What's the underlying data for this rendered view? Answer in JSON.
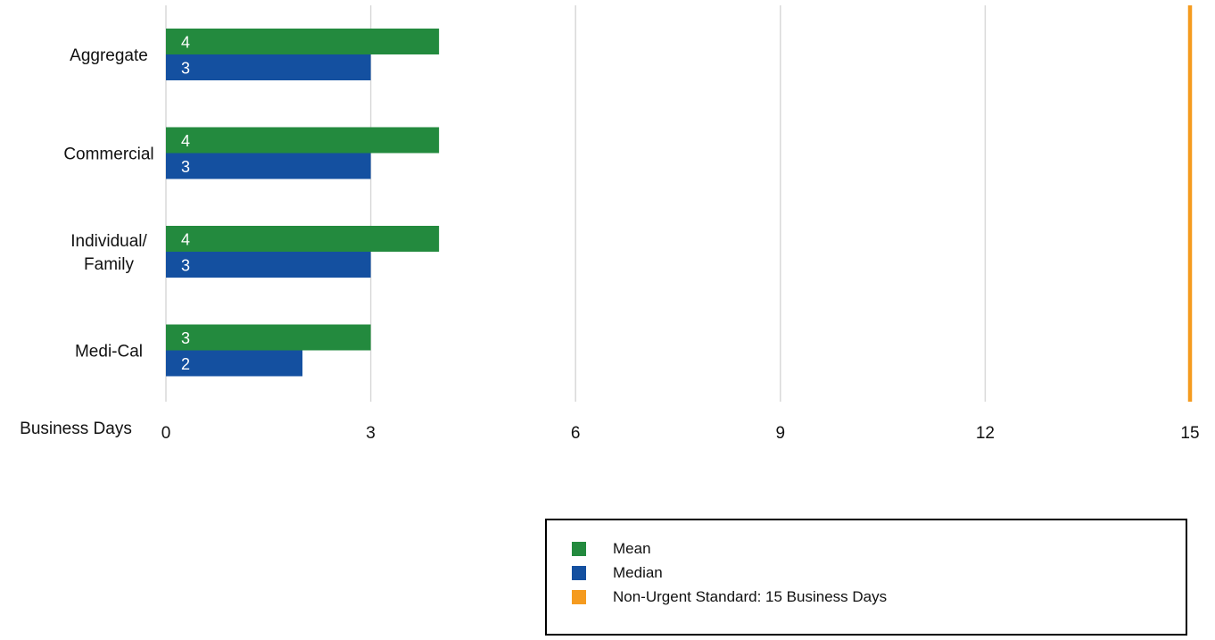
{
  "chart_data": {
    "type": "bar",
    "orientation": "horizontal",
    "categories": [
      [
        "Aggregate"
      ],
      [
        "Commercial"
      ],
      [
        "Individual/",
        "Family"
      ],
      [
        "Medi-Cal"
      ]
    ],
    "series": [
      {
        "name": "Mean",
        "values": [
          4,
          4,
          4,
          3
        ],
        "color": "#238a3e"
      },
      {
        "name": "Median",
        "values": [
          3,
          3,
          3,
          2
        ],
        "color": "#1450a0"
      }
    ],
    "reference_line": {
      "name": "Non-Urgent Standard: 15 Business Days",
      "value": 15,
      "color": "#f59b1f"
    },
    "xlabel": "Business Days",
    "xlim": [
      0,
      15
    ],
    "xticks": [
      0,
      3,
      6,
      9,
      12,
      15
    ],
    "grid": "vertical",
    "legend_position": "bottom-right"
  },
  "legend": {
    "items": [
      {
        "label": "Mean",
        "color": "#238a3e"
      },
      {
        "label": "Median",
        "color": "#1450a0"
      },
      {
        "label": "Non-Urgent Standard: 15 Business Days",
        "color": "#f59b1f"
      }
    ]
  }
}
